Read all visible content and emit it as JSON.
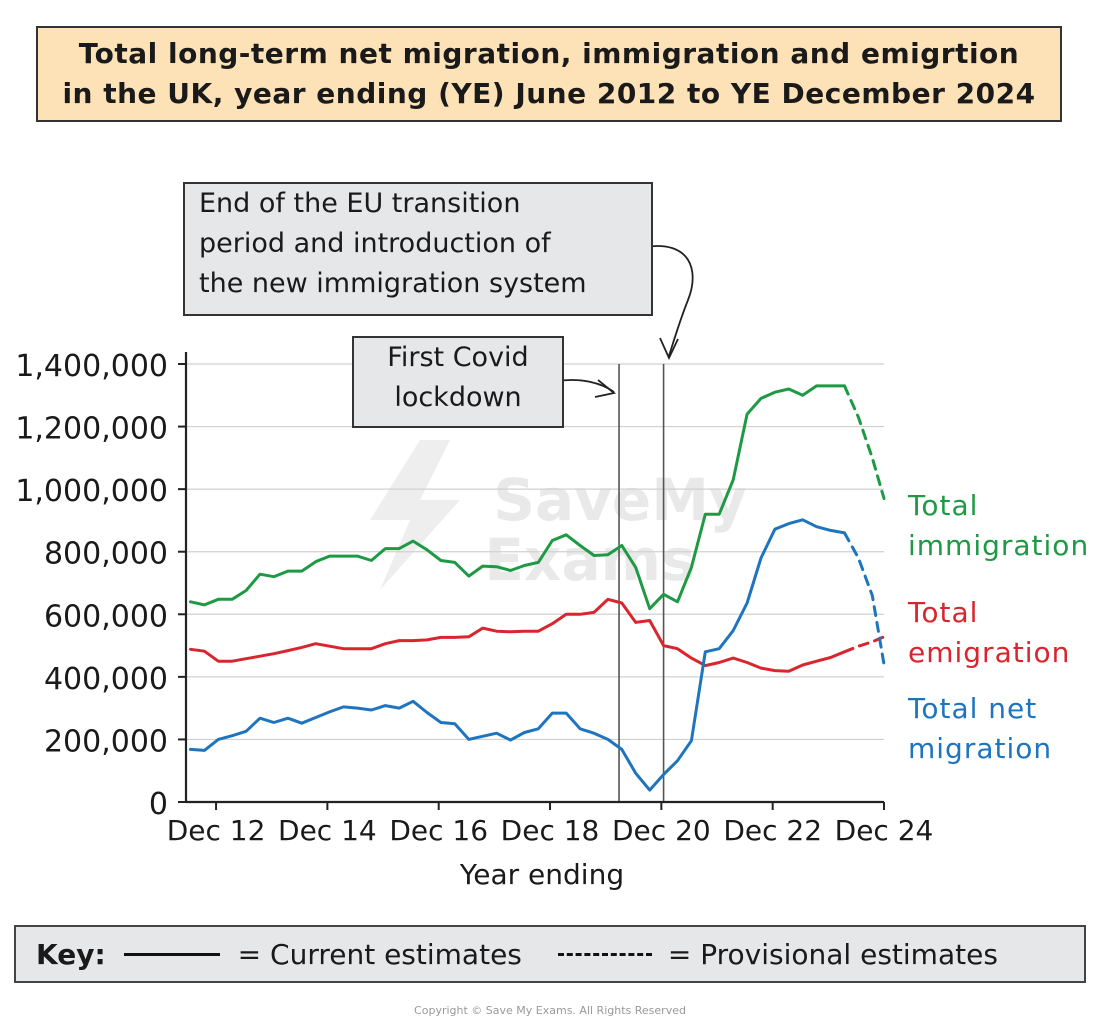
{
  "title_lines": [
    "Total long-term net migration, immigration and emigrtion",
    "in the UK, year ending (YE) June 2012 to YE December 2024"
  ],
  "annotations": {
    "eu_transition": [
      "End of the EU transition",
      "period and introduction of",
      "the new immigration system"
    ],
    "covid": [
      "First Covid",
      "lockdown"
    ]
  },
  "key": {
    "label": "Key:",
    "current": "= Current estimates",
    "provisional": "= Provisional estimates"
  },
  "copyright": "Copyright © Save My Exams. All Rights Reserved",
  "watermark": "Save My Exams",
  "colors": {
    "immigration": "#1e9a45",
    "emigration": "#d9262e",
    "net": "#1f74be",
    "grid": "#d0d0d0",
    "axis": "#222222"
  },
  "chart_data": {
    "type": "line",
    "title": "Total long-term net migration, immigration and emigrtion in the UK, year ending (YE) June 2012 to YE December 2024",
    "xlabel": "Year ending",
    "ylabel": "",
    "x_tick_labels": [
      "Dec 12",
      "Dec 14",
      "Dec 16",
      "Dec 18",
      "Dec 20",
      "Dec 22",
      "Dec 24"
    ],
    "x_tick_values": [
      2012.96,
      2014.96,
      2016.96,
      2018.96,
      2020.96,
      2022.96,
      2024.96
    ],
    "y_tick_labels": [
      "0",
      "200,000",
      "400,000",
      "600,000",
      "800,000",
      "1,000,000",
      "1,200,000",
      "1,400,000"
    ],
    "y_tick_values": [
      0,
      200000,
      400000,
      600000,
      800000,
      1000000,
      1200000,
      1400000
    ],
    "xlim": [
      2012.42,
      2024.96
    ],
    "ylim": [
      0,
      1400000
    ],
    "grid": true,
    "event_lines": [
      {
        "name": "First Covid lockdown",
        "x": 2020.2
      },
      {
        "name": "End of the EU transition period",
        "x": 2021.0
      }
    ],
    "series": [
      {
        "name": "Total immigration",
        "legend_lines": [
          "Total",
          "immigration"
        ],
        "color_key": "immigration",
        "current": {
          "x": [
            2012.5,
            2012.75,
            2013.0,
            2013.25,
            2013.5,
            2013.75,
            2014.0,
            2014.25,
            2014.5,
            2014.75,
            2015.0,
            2015.25,
            2015.5,
            2015.75,
            2016.0,
            2016.25,
            2016.5,
            2016.75,
            2017.0,
            2017.25,
            2017.5,
            2017.75,
            2018.0,
            2018.25,
            2018.5,
            2018.75,
            2019.0,
            2019.25,
            2019.5,
            2019.75,
            2020.0,
            2020.25,
            2020.5,
            2020.75,
            2021.0,
            2021.25,
            2021.5,
            2021.75,
            2022.0,
            2022.25,
            2022.5,
            2022.75,
            2023.0,
            2023.25,
            2023.5,
            2023.75,
            2024.0,
            2024.25
          ],
          "y": [
            640000,
            630000,
            648000,
            648000,
            676000,
            728000,
            720000,
            738000,
            738000,
            768000,
            786000,
            786000,
            786000,
            772000,
            810000,
            810000,
            834000,
            806000,
            772000,
            766000,
            722000,
            754000,
            752000,
            740000,
            756000,
            766000,
            836000,
            854000,
            820000,
            788000,
            790000,
            820000,
            750000,
            618000,
            664000,
            640000,
            750000,
            920000,
            920000,
            1030000,
            1240000,
            1290000,
            1310000,
            1320000,
            1300000,
            1330000,
            1330000,
            1330000
          ]
        },
        "provisional": {
          "x": [
            2024.25,
            2024.5,
            2024.75,
            2024.96
          ],
          "y": [
            1330000,
            1230000,
            1100000,
            970000
          ]
        }
      },
      {
        "name": "Total emigration",
        "legend_lines": [
          "Total",
          "emigration"
        ],
        "color_key": "emigration",
        "current": {
          "x": [
            2012.5,
            2012.75,
            2013.0,
            2013.25,
            2013.5,
            2013.75,
            2014.0,
            2014.25,
            2014.5,
            2014.75,
            2015.0,
            2015.25,
            2015.5,
            2015.75,
            2016.0,
            2016.25,
            2016.5,
            2016.75,
            2017.0,
            2017.25,
            2017.5,
            2017.75,
            2018.0,
            2018.25,
            2018.5,
            2018.75,
            2019.0,
            2019.25,
            2019.5,
            2019.75,
            2020.0,
            2020.25,
            2020.5,
            2020.75,
            2021.0,
            2021.25,
            2021.5,
            2021.75,
            2022.0,
            2022.25,
            2022.5,
            2022.75,
            2023.0,
            2023.25,
            2023.5,
            2023.75,
            2024.0,
            2024.25
          ],
          "y": [
            488000,
            482000,
            450000,
            450000,
            458000,
            466000,
            474000,
            484000,
            494000,
            506000,
            498000,
            490000,
            490000,
            490000,
            506000,
            516000,
            516000,
            518000,
            526000,
            526000,
            528000,
            556000,
            546000,
            544000,
            546000,
            546000,
            570000,
            600000,
            600000,
            606000,
            648000,
            636000,
            574000,
            580000,
            500000,
            490000,
            460000,
            436000,
            446000,
            460000,
            446000,
            428000,
            420000,
            418000,
            438000,
            450000,
            462000,
            480000
          ]
        },
        "provisional": {
          "x": [
            2024.25,
            2024.5,
            2024.75,
            2024.96
          ],
          "y": [
            480000,
            498000,
            512000,
            528000
          ]
        }
      },
      {
        "name": "Total net migration",
        "legend_lines": [
          "Total net",
          "migration"
        ],
        "color_key": "net",
        "current": {
          "x": [
            2012.5,
            2012.75,
            2013.0,
            2013.25,
            2013.5,
            2013.75,
            2014.0,
            2014.25,
            2014.5,
            2014.75,
            2015.0,
            2015.25,
            2015.5,
            2015.75,
            2016.0,
            2016.25,
            2016.5,
            2016.75,
            2017.0,
            2017.25,
            2017.5,
            2017.75,
            2018.0,
            2018.25,
            2018.5,
            2018.75,
            2019.0,
            2019.25,
            2019.5,
            2019.75,
            2020.0,
            2020.25,
            2020.5,
            2020.75,
            2021.0,
            2021.25,
            2021.5,
            2021.75,
            2022.0,
            2022.25,
            2022.5,
            2022.75,
            2023.0,
            2023.25,
            2023.5,
            2023.75,
            2024.0,
            2024.25
          ],
          "y": [
            168000,
            165000,
            200000,
            212000,
            226000,
            268000,
            254000,
            268000,
            252000,
            270000,
            288000,
            304000,
            300000,
            294000,
            308000,
            300000,
            322000,
            286000,
            254000,
            250000,
            200000,
            210000,
            220000,
            198000,
            222000,
            234000,
            284000,
            284000,
            234000,
            220000,
            200000,
            168000,
            92000,
            38000,
            88000,
            132000,
            196000,
            480000,
            490000,
            548000,
            636000,
            780000,
            872000,
            890000,
            902000,
            880000,
            868000,
            860000
          ]
        },
        "provisional": {
          "x": [
            2024.25,
            2024.5,
            2024.75,
            2024.96
          ],
          "y": [
            860000,
            780000,
            660000,
            440000
          ]
        }
      }
    ]
  }
}
